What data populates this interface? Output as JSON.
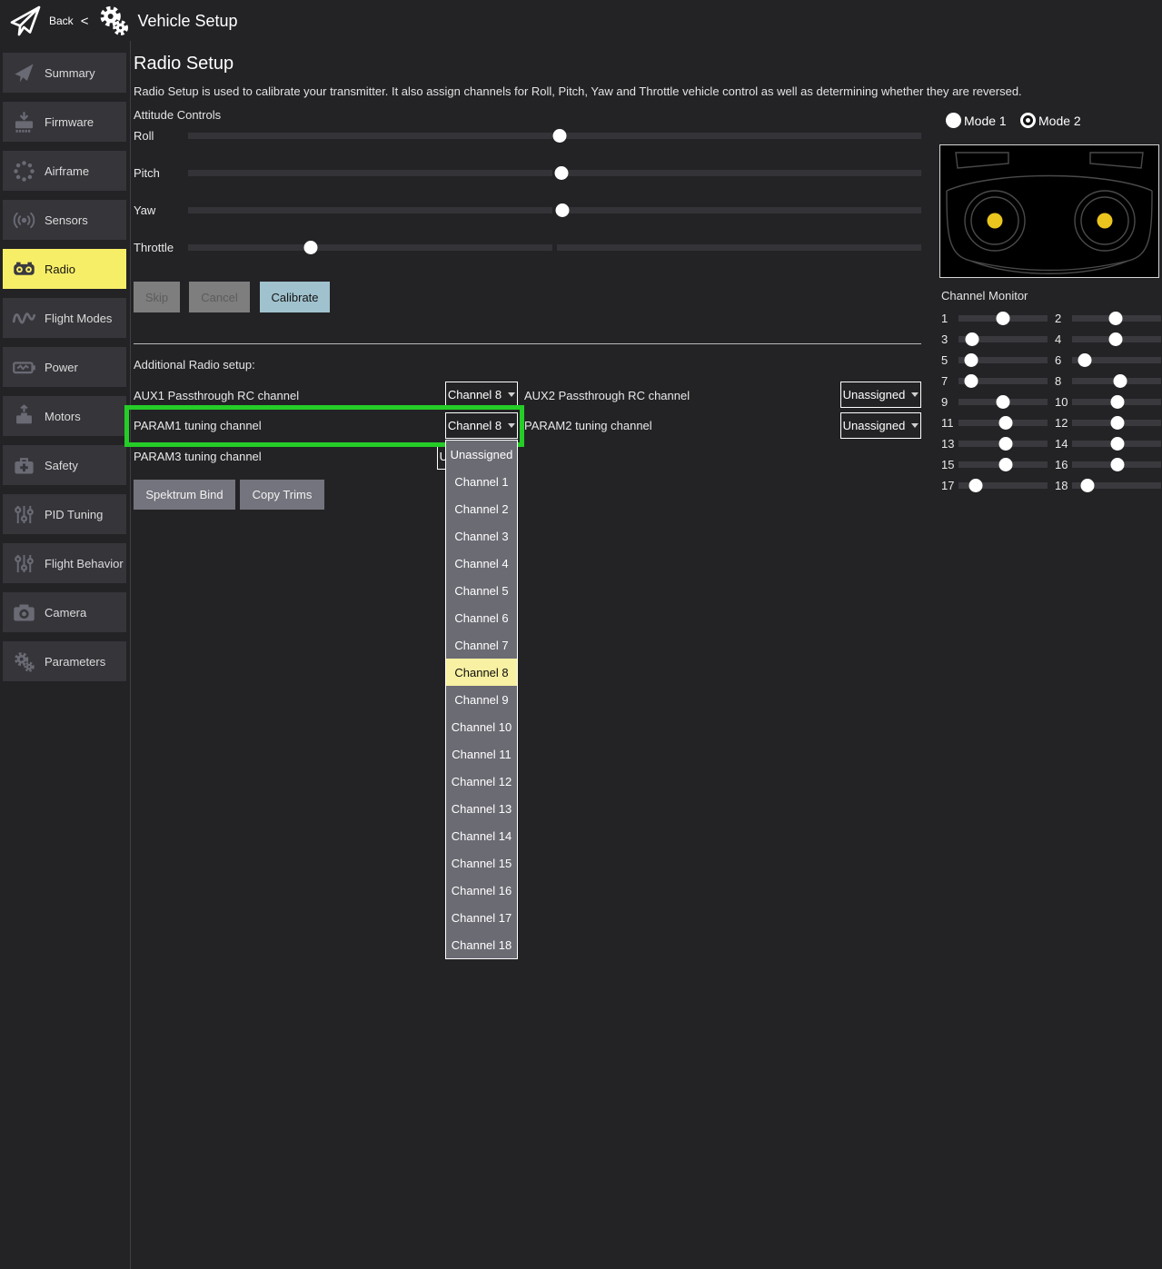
{
  "topbar": {
    "back_label": "Back",
    "separator": "<",
    "title": "Vehicle Setup",
    "logo_icon": "paper-plane-icon",
    "title_icon": "gears-icon"
  },
  "sidebar": {
    "items": [
      {
        "id": "summary",
        "label": "Summary",
        "icon": "plane",
        "active": false
      },
      {
        "id": "firmware",
        "label": "Firmware",
        "icon": "firmware",
        "active": false
      },
      {
        "id": "airframe",
        "label": "Airframe",
        "icon": "airframe",
        "active": false
      },
      {
        "id": "sensors",
        "label": "Sensors",
        "icon": "sensors",
        "active": false
      },
      {
        "id": "radio",
        "label": "Radio",
        "icon": "radio",
        "active": true
      },
      {
        "id": "flight-modes",
        "label": "Flight Modes",
        "icon": "wave",
        "active": false
      },
      {
        "id": "power",
        "label": "Power",
        "icon": "power",
        "active": false
      },
      {
        "id": "motors",
        "label": "Motors",
        "icon": "motors",
        "active": false
      },
      {
        "id": "safety",
        "label": "Safety",
        "icon": "safety",
        "active": false
      },
      {
        "id": "pid-tuning",
        "label": "PID Tuning",
        "icon": "sliders",
        "active": false
      },
      {
        "id": "flight-behavior",
        "label": "Flight Behavior",
        "icon": "sliders",
        "active": false
      },
      {
        "id": "camera",
        "label": "Camera",
        "icon": "camera",
        "active": false
      },
      {
        "id": "parameters",
        "label": "Parameters",
        "icon": "gears",
        "active": false
      }
    ]
  },
  "radio_setup": {
    "title": "Radio Setup",
    "description": "Radio Setup is used to calibrate your transmitter. It also assign channels for Roll, Pitch, Yaw and Throttle vehicle control as well as determining whether they are reversed.",
    "attitude": {
      "heading": "Attitude Controls",
      "sliders": [
        {
          "label": "Roll",
          "pct": 50.7
        },
        {
          "label": "Pitch",
          "pct": 50.9
        },
        {
          "label": "Yaw",
          "pct": 51.1
        },
        {
          "label": "Throttle",
          "pct": 16.7
        }
      ]
    },
    "buttons": {
      "skip": "Skip",
      "cancel": "Cancel",
      "calibrate": "Calibrate",
      "spektrum_bind": "Spektrum Bind",
      "copy_trims": "Copy Trims"
    },
    "additional": {
      "heading": "Additional Radio setup:",
      "aux1": {
        "label": "AUX1 Passthrough RC channel",
        "value": "Channel 8"
      },
      "aux2": {
        "label": "AUX2 Passthrough RC channel",
        "value": "Unassigned"
      },
      "param1": {
        "label": "PARAM1 tuning channel",
        "value": "Channel 8",
        "highlighted": true
      },
      "param2": {
        "label": "PARAM2 tuning channel",
        "value": "Unassigned"
      },
      "param3": {
        "label": "PARAM3 tuning channel",
        "value": "Unassigned"
      }
    },
    "open_dropdown": {
      "options": [
        "Unassigned",
        "Channel 1",
        "Channel 2",
        "Channel 3",
        "Channel 4",
        "Channel 5",
        "Channel 6",
        "Channel 7",
        "Channel 8",
        "Channel 9",
        "Channel 10",
        "Channel 11",
        "Channel 12",
        "Channel 13",
        "Channel 14",
        "Channel 15",
        "Channel 16",
        "Channel 17",
        "Channel 18"
      ],
      "selected": "Channel 8"
    }
  },
  "right_panel": {
    "modes": [
      {
        "label": "Mode 1",
        "selected": false
      },
      {
        "label": "Mode 2",
        "selected": true
      }
    ],
    "transmitter_image": "rc-transmitter-sticks-illustration",
    "channel_monitor": {
      "heading": "Channel Monitor",
      "channels": [
        {
          "num": "1",
          "pct": 50
        },
        {
          "num": "2",
          "pct": 49
        },
        {
          "num": "3",
          "pct": 15
        },
        {
          "num": "4",
          "pct": 49
        },
        {
          "num": "5",
          "pct": 14
        },
        {
          "num": "6",
          "pct": 14
        },
        {
          "num": "7",
          "pct": 14
        },
        {
          "num": "8",
          "pct": 54
        },
        {
          "num": "9",
          "pct": 50
        },
        {
          "num": "10",
          "pct": 51
        },
        {
          "num": "11",
          "pct": 53
        },
        {
          "num": "12",
          "pct": 51
        },
        {
          "num": "13",
          "pct": 53
        },
        {
          "num": "14",
          "pct": 51
        },
        {
          "num": "15",
          "pct": 53
        },
        {
          "num": "16",
          "pct": 51
        },
        {
          "num": "17",
          "pct": 19
        },
        {
          "num": "18",
          "pct": 17
        }
      ]
    }
  },
  "colors": {
    "background": "#232326",
    "sidebar_item": "#35353a",
    "accent_yellow": "#f7ee67",
    "dropdown_selected_yellow": "#f8f0a2",
    "highlight_green": "#25cd27",
    "calibrate_blue": "#a0c2ce",
    "stick_dot_yellow": "#eac51e",
    "track_gray": "#343438"
  }
}
